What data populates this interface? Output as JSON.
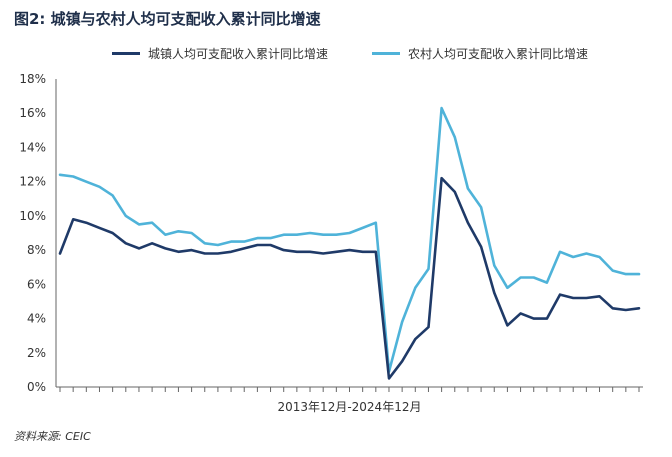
{
  "title": "图2: 城镇与农村人均可支配收入累计同比增速",
  "source": "资料来源: CEIC",
  "colors": {
    "urban": "#1f3a68",
    "rural": "#4fb3d9",
    "axis": "#333333",
    "grid": "#d0d0d0"
  },
  "chart_data": {
    "type": "line",
    "title": "图2: 城镇与农村人均可支配收入累计同比增速",
    "xlabel": "2013年12月-2024年12月",
    "ylabel": "",
    "ylim": [
      0,
      18
    ],
    "yticks": [
      0,
      2,
      4,
      6,
      8,
      10,
      12,
      14,
      16,
      18
    ],
    "ytick_labels": [
      "0%",
      "2%",
      "4%",
      "6%",
      "8%",
      "10%",
      "12%",
      "14%",
      "16%",
      "18%"
    ],
    "grid": false,
    "legend_position": "top-center",
    "n_points": 45,
    "series": [
      {
        "name": "城镇人均可支配收入累计同比增速",
        "values": [
          7.8,
          9.8,
          9.6,
          9.3,
          9.0,
          8.4,
          8.1,
          8.4,
          8.1,
          7.9,
          8.0,
          7.8,
          7.8,
          7.9,
          8.1,
          8.3,
          8.3,
          8.0,
          7.9,
          7.9,
          7.8,
          7.9,
          8.0,
          7.9,
          7.9,
          0.5,
          1.5,
          2.8,
          3.5,
          12.2,
          11.4,
          9.6,
          8.2,
          5.5,
          3.6,
          4.3,
          4.0,
          4.0,
          5.4,
          5.2,
          5.2,
          5.3,
          4.6,
          4.5,
          4.6
        ]
      },
      {
        "name": "农村人均可支配收入累计同比增速",
        "values": [
          12.4,
          12.3,
          12.0,
          11.7,
          11.2,
          10.0,
          9.5,
          9.6,
          8.9,
          9.1,
          9.0,
          8.4,
          8.3,
          8.5,
          8.5,
          8.7,
          8.7,
          8.9,
          8.9,
          9.0,
          8.9,
          8.9,
          9.0,
          9.3,
          9.6,
          0.9,
          3.8,
          5.8,
          6.9,
          16.3,
          14.6,
          11.6,
          10.5,
          7.1,
          5.8,
          6.4,
          6.4,
          6.1,
          7.9,
          7.6,
          7.8,
          7.6,
          6.8,
          6.6,
          6.6
        ]
      }
    ]
  }
}
